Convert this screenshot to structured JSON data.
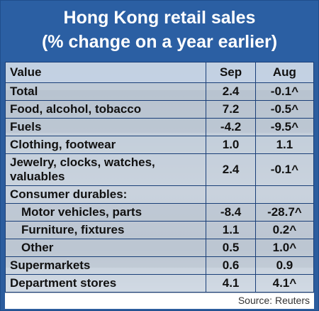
{
  "chart_data": {
    "type": "table",
    "title_line1": "Hong Kong retail sales",
    "title_line2": "(% change on a year earlier)",
    "headers": [
      "Value",
      "Sep",
      "Aug"
    ],
    "rows": [
      {
        "label": "Total",
        "sep": "2.4",
        "aug": "-0.1^"
      },
      {
        "label": "Food, alcohol, tobacco",
        "sep": "7.2",
        "aug": "-0.5^"
      },
      {
        "label": "Fuels",
        "sep": "-4.2",
        "aug": "-9.5^"
      },
      {
        "label": "Clothing, footwear",
        "sep": "1.0",
        "aug": "1.1"
      },
      {
        "label": "Jewelry, clocks, watches, valuables",
        "sep": "2.4",
        "aug": "-0.1^"
      },
      {
        "label": "Consumer durables:",
        "sep": "",
        "aug": ""
      },
      {
        "label": "Motor vehicles, parts",
        "sep": "-8.4",
        "aug": "-28.7^"
      },
      {
        "label": "Furniture, fixtures",
        "sep": "1.1",
        "aug": "0.2^"
      },
      {
        "label": "Other",
        "sep": "0.5",
        "aug": "1.0^"
      },
      {
        "label": "Supermarkets",
        "sep": "0.6",
        "aug": "0.9"
      },
      {
        "label": "Department stores",
        "sep": "4.1",
        "aug": "4.1^"
      }
    ],
    "source": "Source: Reuters"
  }
}
